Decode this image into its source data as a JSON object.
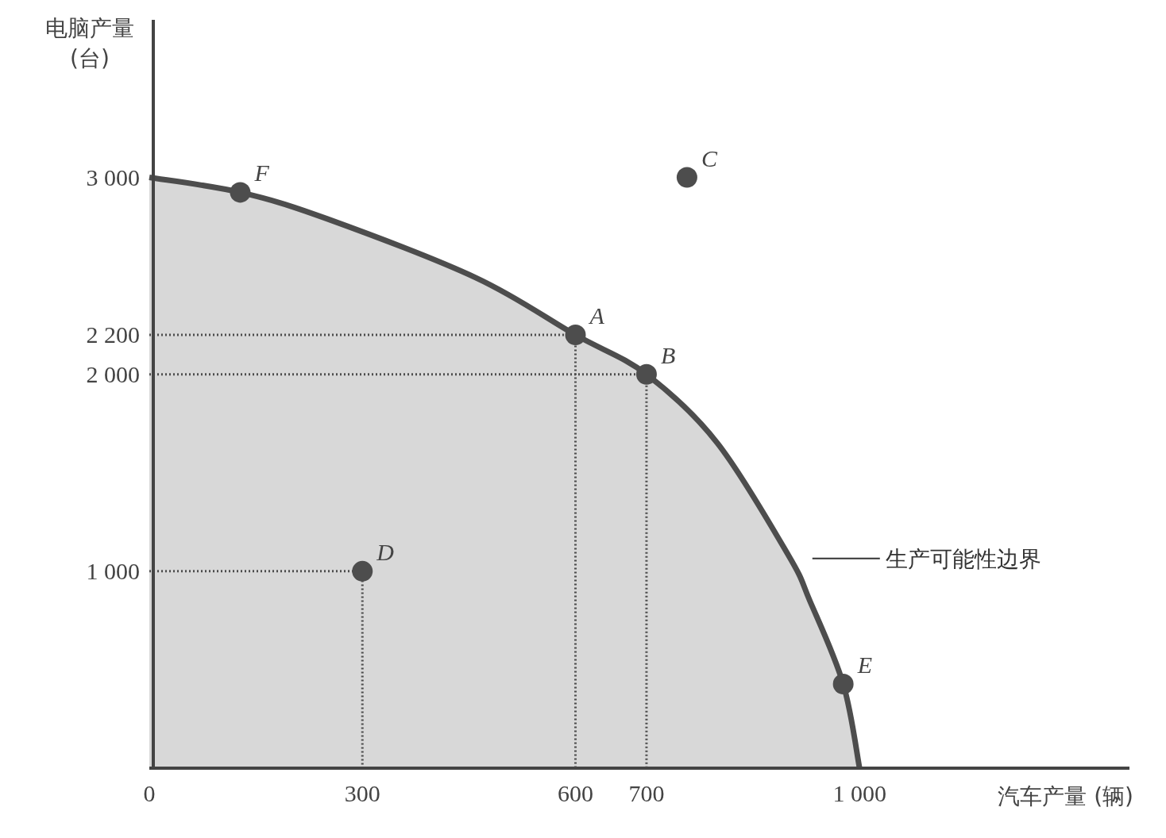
{
  "chart_data": {
    "type": "scatter",
    "xlabel": "汽车产量 (辆)",
    "ylabel": "电脑产量\n(台)",
    "xlim": [
      0,
      1380
    ],
    "ylim": [
      0,
      3800
    ],
    "xticks": [
      0,
      300,
      600,
      700,
      {
        "value": 1000,
        "label": "1 000"
      }
    ],
    "yticks": [
      {
        "value": 1000,
        "label": "1 000"
      },
      {
        "value": 2000,
        "label": "2 000"
      },
      {
        "value": 2200,
        "label": "2 200"
      },
      {
        "value": 3000,
        "label": "3 000"
      }
    ],
    "grid": false,
    "legend": false,
    "series": [
      {
        "type": "area",
        "name": "生产可能性边界",
        "color": "#4d4d4d",
        "x": [
          0,
          128,
          250,
          460,
          600,
          700,
          800,
          900,
          930,
          977,
          1000
        ],
        "values": [
          3000,
          2924,
          2790,
          2490,
          2200,
          2000,
          1650,
          1080,
          850,
          427,
          0
        ]
      },
      {
        "type": "line",
        "color": "#4d4d4d",
        "line_style": "dotted",
        "x": [
          0,
          600,
          600
        ],
        "values": [
          2200,
          2200,
          0
        ]
      },
      {
        "type": "line",
        "color": "#4d4d4d",
        "line_style": "dotted",
        "x": [
          0,
          700,
          700
        ],
        "values": [
          2000,
          2000,
          0
        ]
      },
      {
        "type": "line",
        "color": "#4d4d4d",
        "line_style": "dotted",
        "x": [
          0,
          300,
          300
        ],
        "values": [
          1000,
          1000,
          0
        ]
      },
      {
        "type": "scatter",
        "color": "#4d4d4d",
        "marker": "circle",
        "x": [
          600,
          700,
          757,
          300,
          977,
          128
        ],
        "values": [
          2200,
          2000,
          3000,
          1000,
          427,
          2924
        ]
      }
    ],
    "annotations": [
      {
        "text": "A",
        "x": 600,
        "y": 2200
      },
      {
        "text": "B",
        "x": 700,
        "y": 2000
      },
      {
        "text": "C",
        "x": 757,
        "y": 3000
      },
      {
        "text": "D",
        "x": 300,
        "y": 1000
      },
      {
        "text": "E",
        "x": 977,
        "y": 427
      },
      {
        "text": "F",
        "x": 128,
        "y": 2924
      }
    ]
  }
}
